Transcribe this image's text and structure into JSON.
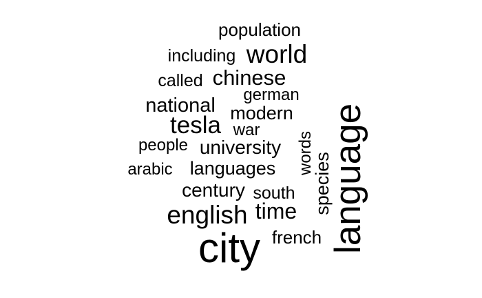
{
  "word_cloud": {
    "text_color": "#000000",
    "background_color": "#ffffff",
    "words": [
      {
        "id": "population",
        "text": "population"
      },
      {
        "id": "including",
        "text": "including"
      },
      {
        "id": "world",
        "text": "world"
      },
      {
        "id": "called",
        "text": "called"
      },
      {
        "id": "chinese",
        "text": "chinese"
      },
      {
        "id": "german",
        "text": "german"
      },
      {
        "id": "national",
        "text": "national"
      },
      {
        "id": "modern",
        "text": "modern"
      },
      {
        "id": "tesla",
        "text": "tesla"
      },
      {
        "id": "war",
        "text": "war"
      },
      {
        "id": "people",
        "text": "people"
      },
      {
        "id": "university",
        "text": "university"
      },
      {
        "id": "words",
        "text": "words"
      },
      {
        "id": "arabic",
        "text": "arabic"
      },
      {
        "id": "languages",
        "text": "languages"
      },
      {
        "id": "species",
        "text": "species"
      },
      {
        "id": "century",
        "text": "century"
      },
      {
        "id": "south",
        "text": "south"
      },
      {
        "id": "english",
        "text": "english"
      },
      {
        "id": "time",
        "text": "time"
      },
      {
        "id": "french",
        "text": "french"
      },
      {
        "id": "city",
        "text": "city"
      },
      {
        "id": "language",
        "text": "language"
      }
    ]
  }
}
